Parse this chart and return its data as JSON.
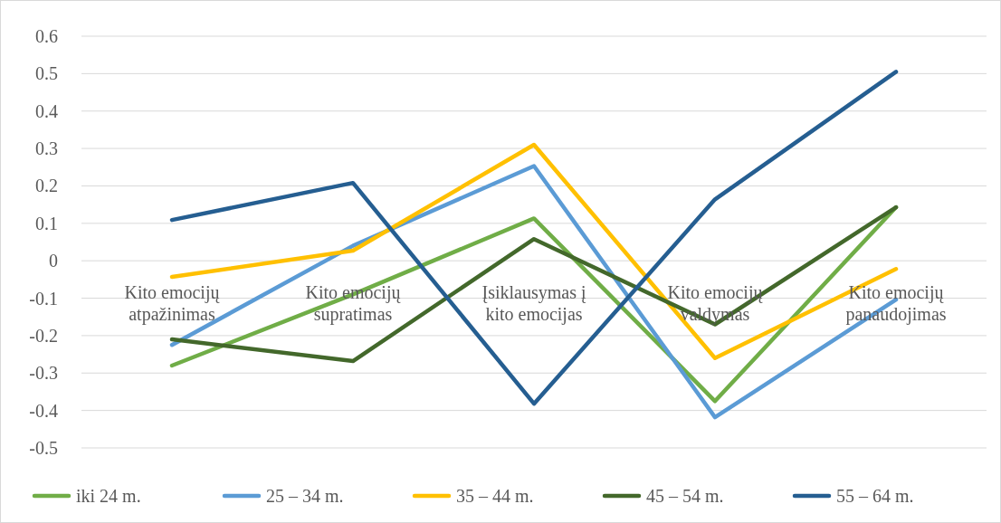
{
  "chart_data": {
    "type": "line",
    "categories": [
      "Kito emocijų atpažinimas",
      "Kito emocijų supratimas",
      "Įsiklausymas į kito emocijas",
      "Kito emocijų valdymas",
      "Kito emocijų panaudojimas"
    ],
    "series": [
      {
        "name": "iki 24 m.",
        "color": "#70ad47",
        "values": [
          -0.28,
          -0.09,
          0.113,
          -0.375,
          0.143
        ]
      },
      {
        "name": "25 – 34 m.",
        "color": "#5b9bd5",
        "values": [
          -0.225,
          0.04,
          0.253,
          -0.418,
          -0.104
        ]
      },
      {
        "name": "35 – 44 m.",
        "color": "#ffc000",
        "values": [
          -0.043,
          0.027,
          0.31,
          -0.26,
          -0.022
        ]
      },
      {
        "name": "45 – 54 m.",
        "color": "#43682b",
        "values": [
          -0.21,
          -0.268,
          0.058,
          -0.17,
          0.143
        ]
      },
      {
        "name": "55 – 64 m.",
        "color": "#255e91",
        "values": [
          0.109,
          0.208,
          -0.382,
          0.164,
          0.505
        ]
      }
    ],
    "ylim": [
      -0.5,
      0.6
    ],
    "yticks": [
      -0.5,
      -0.4,
      -0.3,
      -0.2,
      -0.1,
      0,
      0.1,
      0.2,
      0.3,
      0.4,
      0.5,
      0.6
    ],
    "grid": "y",
    "legend": "bottom",
    "marker": "none",
    "line_style": "solid"
  }
}
